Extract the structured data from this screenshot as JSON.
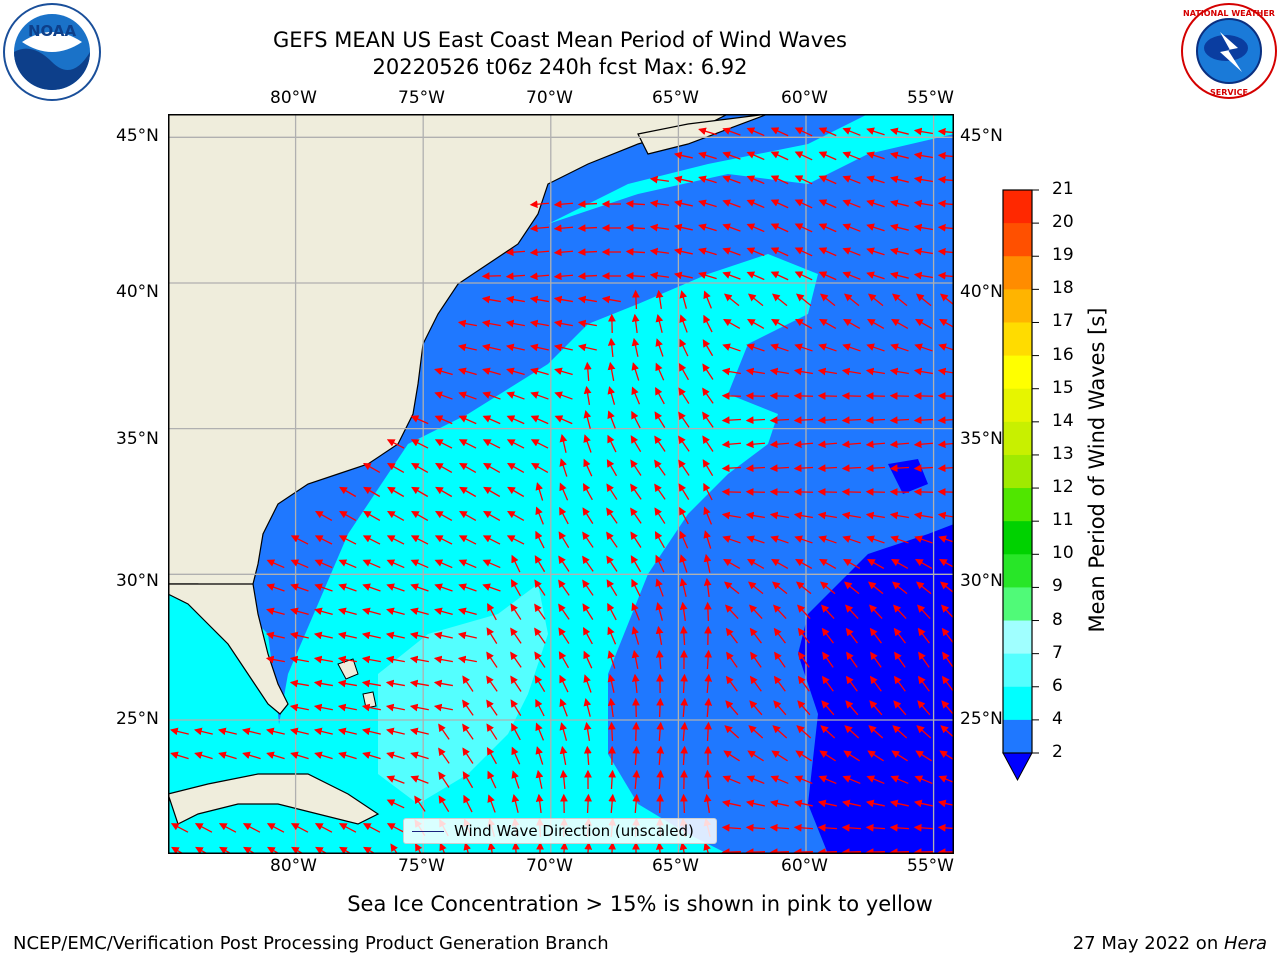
{
  "header": {
    "title_line1": "GEFS MEAN US East Coast Mean Period of Wind Waves",
    "title_line2": "20220526 t06z 240h fcst   Max: 6.92"
  },
  "logos": {
    "left": "NOAA",
    "left_ring_text": "NATIONAL OCEANIC AND ATMOSPHERIC ADMINISTRATION · U.S. DEPARTMENT OF COMMERCE",
    "right_ring_text": "NATIONAL WEATHER SERVICE"
  },
  "map": {
    "lon_labels": [
      "80°W",
      "75°W",
      "70°W",
      "65°W",
      "60°W",
      "55°W"
    ],
    "lat_labels": [
      "45°N",
      "40°N",
      "35°N",
      "30°N",
      "25°N"
    ],
    "extent": {
      "lon_min": -85,
      "lon_max": -54.2,
      "lat_min": 20.4,
      "lat_max": 45.8
    },
    "colors": {
      "land": "#efeddc",
      "ocean_2_4": "#1f78ff",
      "ocean_4_6": "#00ffff",
      "ocean_6_8": "#54ffff",
      "ocean_lt_2": "#0000ff",
      "arrow": "#ff0000",
      "grid": "#b0b0b0"
    },
    "legend_text": "Wind Wave Direction (unscaled)",
    "max_value": 6.92
  },
  "colorbar": {
    "title": "Mean Period of Wind Waves [s]",
    "ticks": [
      "2",
      "4",
      "6",
      "7",
      "8",
      "9",
      "10",
      "11",
      "12",
      "13",
      "14",
      "15",
      "16",
      "17",
      "18",
      "19",
      "20",
      "21"
    ],
    "colors": [
      "#1f78ff",
      "#00ffff",
      "#54ffff",
      "#a0ffff",
      "#50fa78",
      "#28e628",
      "#00d200",
      "#50e600",
      "#a0ea00",
      "#c8f000",
      "#e6f500",
      "#ffff00",
      "#ffdc00",
      "#ffb400",
      "#ff8c00",
      "#ff5000",
      "#ff2800"
    ],
    "under_color": "#0000ff"
  },
  "footer": {
    "sea_ice_note": "Sea Ice Concentration > 15% is shown in pink to yellow",
    "branch": "NCEP/EMC/Verification Post Processing Product Generation Branch",
    "date": "27 May 2022 on ",
    "machine": "Hera"
  }
}
